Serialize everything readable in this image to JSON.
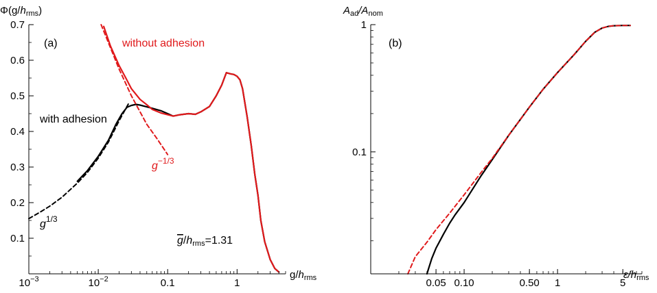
{
  "chart_data": [
    {
      "panel_label": "(a)",
      "type": "line",
      "x_scale": "log",
      "y_scale": "linear",
      "xlim": [
        0.001,
        5
      ],
      "ylim": [
        0,
        0.7
      ],
      "xlabel": {
        "base": "g/",
        "italic": "h",
        "sub": "rms"
      },
      "ylabel": {
        "base": "Φ(g/",
        "italic": "h",
        "sub": "rms",
        "close": ")"
      },
      "x_ticks": [
        {
          "value": 0.001,
          "base": "10",
          "exp": "−3"
        },
        {
          "value": 0.01,
          "base": "10",
          "exp": "−2"
        },
        {
          "value": 0.1,
          "label": "0.1"
        },
        {
          "value": 1,
          "label": "1"
        }
      ],
      "y_ticks": [
        {
          "value": 0.1,
          "label": "0.1"
        },
        {
          "value": 0.2,
          "label": "0.2"
        },
        {
          "value": 0.3,
          "label": "0.3"
        },
        {
          "value": 0.4,
          "label": "0.4"
        },
        {
          "value": 0.5,
          "label": "0.5"
        },
        {
          "value": 0.6,
          "label": "0.6"
        },
        {
          "value": 0.7,
          "label": "0.7"
        }
      ],
      "series": [
        {
          "name": "with adhesion",
          "color": "#000000",
          "style": "solid",
          "points": [
            [
              0.005,
              0.26
            ],
            [
              0.007,
              0.29
            ],
            [
              0.01,
              0.33
            ],
            [
              0.014,
              0.375
            ],
            [
              0.018,
              0.42
            ],
            [
              0.022,
              0.45
            ],
            [
              0.026,
              0.468
            ],
            [
              0.03,
              0.473
            ],
            [
              0.035,
              0.476
            ],
            [
              0.04,
              0.474
            ],
            [
              0.05,
              0.469
            ],
            [
              0.06,
              0.465
            ],
            [
              0.08,
              0.458
            ],
            [
              0.1,
              0.45
            ],
            [
              0.12,
              0.443
            ],
            [
              0.15,
              0.447
            ],
            [
              0.2,
              0.45
            ],
            [
              0.25,
              0.448
            ],
            [
              0.3,
              0.455
            ],
            [
              0.4,
              0.47
            ],
            [
              0.5,
              0.5
            ],
            [
              0.6,
              0.53
            ],
            [
              0.7,
              0.565
            ],
            [
              0.8,
              0.562
            ],
            [
              0.9,
              0.56
            ],
            [
              1.0,
              0.555
            ],
            [
              1.1,
              0.545
            ],
            [
              1.2,
              0.52
            ],
            [
              1.4,
              0.44
            ],
            [
              1.6,
              0.36
            ],
            [
              1.8,
              0.28
            ],
            [
              2.0,
              0.22
            ],
            [
              2.2,
              0.15
            ],
            [
              2.5,
              0.09
            ],
            [
              3.0,
              0.04
            ],
            [
              3.5,
              0.015
            ],
            [
              4.0,
              0.005
            ]
          ]
        },
        {
          "name": "without adhesion",
          "color": "#e0191b",
          "style": "solid",
          "points": [
            [
              0.012,
              0.695
            ],
            [
              0.015,
              0.64
            ],
            [
              0.02,
              0.585
            ],
            [
              0.025,
              0.55
            ],
            [
              0.03,
              0.52
            ],
            [
              0.04,
              0.49
            ],
            [
              0.05,
              0.475
            ],
            [
              0.06,
              0.462
            ],
            [
              0.08,
              0.452
            ],
            [
              0.1,
              0.447
            ],
            [
              0.12,
              0.443
            ],
            [
              0.15,
              0.447
            ],
            [
              0.2,
              0.45
            ],
            [
              0.25,
              0.448
            ],
            [
              0.3,
              0.455
            ],
            [
              0.4,
              0.47
            ],
            [
              0.5,
              0.5
            ],
            [
              0.6,
              0.53
            ],
            [
              0.7,
              0.565
            ],
            [
              0.8,
              0.562
            ],
            [
              0.9,
              0.56
            ],
            [
              1.0,
              0.555
            ],
            [
              1.1,
              0.545
            ],
            [
              1.2,
              0.52
            ],
            [
              1.4,
              0.44
            ],
            [
              1.6,
              0.36
            ],
            [
              1.8,
              0.28
            ],
            [
              2.0,
              0.22
            ],
            [
              2.2,
              0.15
            ],
            [
              2.5,
              0.09
            ],
            [
              3.0,
              0.04
            ],
            [
              3.5,
              0.015
            ],
            [
              4.0,
              0.005
            ]
          ]
        },
        {
          "name": "g^{1/3}",
          "color": "#000000",
          "style": "dashed",
          "points": [
            [
              0.001,
              0.155
            ],
            [
              0.0015,
              0.175
            ],
            [
              0.002,
              0.19
            ],
            [
              0.003,
              0.215
            ],
            [
              0.005,
              0.255
            ],
            [
              0.007,
              0.285
            ],
            [
              0.01,
              0.325
            ],
            [
              0.014,
              0.37
            ],
            [
              0.02,
              0.43
            ],
            [
              0.028,
              0.482
            ]
          ]
        },
        {
          "name": "g^{-1/3}",
          "color": "#e0191b",
          "style": "dashed",
          "points": [
            [
              0.011,
              0.7
            ],
            [
              0.015,
              0.635
            ],
            [
              0.02,
              0.575
            ],
            [
              0.03,
              0.5
            ],
            [
              0.04,
              0.455
            ],
            [
              0.05,
              0.42
            ],
            [
              0.07,
              0.38
            ],
            [
              0.1,
              0.335
            ]
          ]
        }
      ],
      "annotations": [
        {
          "text": "without adhesion",
          "color": "#e0191b"
        },
        {
          "text": "with adhesion",
          "color": "#000000"
        },
        {
          "base": "g",
          "exp": "−1/3",
          "color": "#e0191b"
        },
        {
          "base": "g",
          "exp": "1/3",
          "color": "#000000"
        },
        {
          "bar": "g",
          "mid": "/",
          "italic": "h",
          "sub": "rms",
          "tail": "=1.31",
          "color": "#000000"
        }
      ]
    },
    {
      "panel_label": "(b)",
      "type": "line",
      "x_scale": "log",
      "y_scale": "log",
      "xlim": [
        0.01,
        8
      ],
      "ylim": [
        0.011,
        1
      ],
      "xlabel": {
        "italic": "ε/h",
        "sub": "rms"
      },
      "ylabel": {
        "base": "A",
        "sub1": "ad",
        "mid": "/A",
        "sub2": "nom"
      },
      "x_ticks": [
        {
          "value": 0.05,
          "label": "0.05"
        },
        {
          "value": 0.1,
          "label": "0.10"
        },
        {
          "value": 0.5,
          "label": "0.50"
        },
        {
          "value": 1,
          "label": "1"
        },
        {
          "value": 5,
          "label": "5"
        }
      ],
      "y_ticks": [
        {
          "value": 0.1,
          "label": "0.1"
        },
        {
          "value": 1,
          "label": "1"
        }
      ],
      "series": [
        {
          "name": "black solid",
          "color": "#000000",
          "style": "solid",
          "points": [
            [
              0.04,
              0.011
            ],
            [
              0.045,
              0.0145
            ],
            [
              0.05,
              0.0175
            ],
            [
              0.06,
              0.0225
            ],
            [
              0.07,
              0.0275
            ],
            [
              0.08,
              0.032
            ],
            [
              0.1,
              0.04
            ],
            [
              0.15,
              0.064
            ],
            [
              0.2,
              0.087
            ],
            [
              0.3,
              0.135
            ],
            [
              0.5,
              0.225
            ],
            [
              0.7,
              0.31
            ],
            [
              1.0,
              0.42
            ],
            [
              1.5,
              0.58
            ],
            [
              2.0,
              0.74
            ],
            [
              2.5,
              0.87
            ],
            [
              3.0,
              0.94
            ],
            [
              3.5,
              0.97
            ],
            [
              4.0,
              0.98
            ],
            [
              5.0,
              0.985
            ],
            [
              6.0,
              0.985
            ]
          ]
        },
        {
          "name": "red dashed",
          "color": "#e0191b",
          "style": "dashed",
          "points": [
            [
              0.025,
              0.011
            ],
            [
              0.03,
              0.015
            ],
            [
              0.04,
              0.0195
            ],
            [
              0.05,
              0.0245
            ],
            [
              0.07,
              0.033
            ],
            [
              0.1,
              0.046
            ],
            [
              0.15,
              0.068
            ],
            [
              0.2,
              0.089
            ],
            [
              0.3,
              0.135
            ],
            [
              0.5,
              0.225
            ],
            [
              0.7,
              0.31
            ],
            [
              1.0,
              0.42
            ],
            [
              1.5,
              0.58
            ],
            [
              2.0,
              0.74
            ],
            [
              2.5,
              0.87
            ],
            [
              3.0,
              0.94
            ],
            [
              3.5,
              0.97
            ],
            [
              4.0,
              0.98
            ],
            [
              5.0,
              0.985
            ],
            [
              6.0,
              0.985
            ]
          ]
        }
      ],
      "annotations": []
    }
  ]
}
